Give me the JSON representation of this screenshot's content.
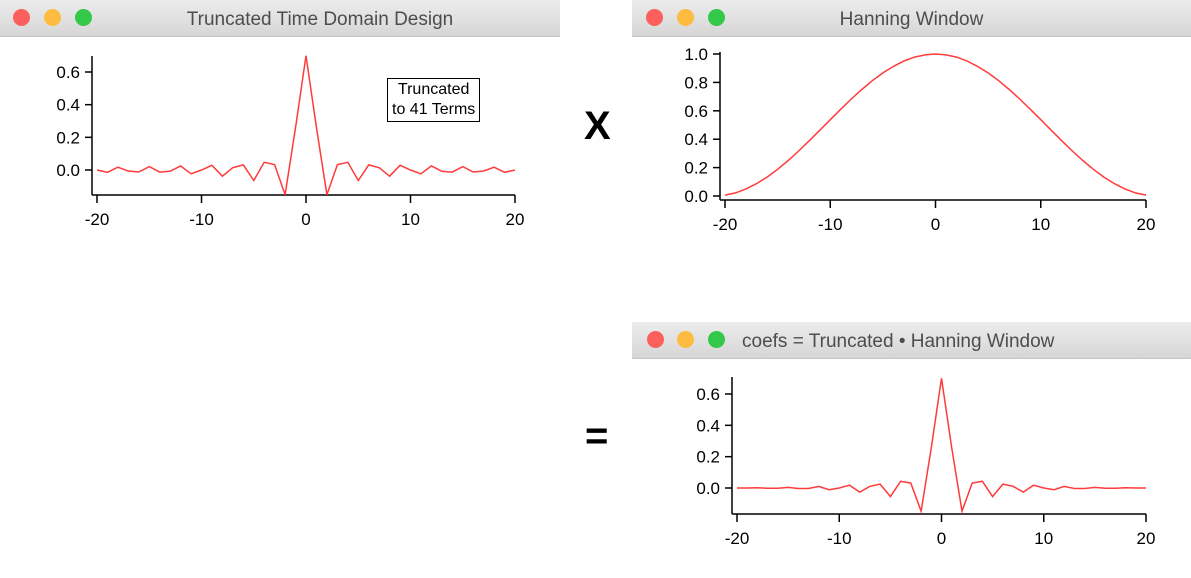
{
  "windows": [
    {
      "title": "Truncated Time Domain Design",
      "annotation": [
        "Truncated",
        "to 41 Terms"
      ]
    },
    {
      "title": "Hanning Window"
    },
    {
      "title": "coefs = Truncated • Hanning Window"
    }
  ],
  "operators": {
    "multiply": "X",
    "equals": "="
  },
  "colors": {
    "close": "#fc605c",
    "minimize": "#fdbc40",
    "zoom": "#34c84a",
    "trace": "#ff3b3b"
  },
  "chart_data": [
    {
      "type": "line",
      "xlim": [
        -20,
        20
      ],
      "ylim": [
        -0.16,
        0.7
      ],
      "xticks": [
        "-20",
        "-10",
        "0",
        "10",
        "20"
      ],
      "yticks": [
        "0.0",
        "0.2",
        "0.4",
        "0.6"
      ],
      "x": [
        -20,
        -19,
        -18,
        -17,
        -16,
        -15,
        -14,
        -13,
        -12,
        -11,
        -10,
        -9,
        -8,
        -7,
        -6,
        -5,
        -4,
        -3,
        -2,
        -1,
        0,
        1,
        2,
        3,
        4,
        5,
        6,
        7,
        8,
        9,
        10,
        11,
        12,
        13,
        14,
        15,
        16,
        17,
        18,
        19,
        20
      ],
      "y": [
        0,
        -0.014,
        0.017,
        -0.006,
        -0.012,
        0.021,
        -0.013,
        -0.008,
        0.025,
        -0.023,
        0,
        0.029,
        -0.038,
        0.014,
        0.031,
        -0.064,
        0.047,
        0.033,
        -0.151,
        0.258,
        0.7,
        0.258,
        -0.151,
        0.033,
        0.047,
        -0.064,
        0.031,
        0.014,
        -0.038,
        0.029,
        0,
        -0.023,
        0.025,
        -0.008,
        -0.013,
        0.021,
        -0.012,
        -0.006,
        0.017,
        -0.014,
        0
      ]
    },
    {
      "type": "line",
      "xlim": [
        -20,
        20
      ],
      "ylim": [
        0,
        1.0
      ],
      "xticks": [
        "-20",
        "-10",
        "0",
        "10",
        "20"
      ],
      "yticks": [
        "0.0",
        "0.2",
        "0.4",
        "0.6",
        "0.8",
        "1.0"
      ],
      "x": [
        -20,
        -19,
        -18,
        -17,
        -16,
        -15,
        -14,
        -13,
        -12,
        -11,
        -10,
        -9,
        -8,
        -7,
        -6,
        -5,
        -4,
        -3,
        -2,
        -1,
        0,
        1,
        2,
        3,
        4,
        5,
        6,
        7,
        8,
        9,
        10,
        11,
        12,
        13,
        14,
        15,
        16,
        17,
        18,
        19,
        20
      ],
      "y": [
        0.006,
        0.022,
        0.05,
        0.087,
        0.133,
        0.188,
        0.25,
        0.317,
        0.389,
        0.463,
        0.537,
        0.611,
        0.683,
        0.75,
        0.812,
        0.867,
        0.913,
        0.951,
        0.978,
        0.994,
        1,
        0.994,
        0.978,
        0.951,
        0.913,
        0.867,
        0.812,
        0.75,
        0.683,
        0.611,
        0.537,
        0.463,
        0.389,
        0.317,
        0.25,
        0.188,
        0.133,
        0.087,
        0.05,
        0.022,
        0.006
      ]
    },
    {
      "type": "line",
      "xlim": [
        -20,
        20
      ],
      "ylim": [
        -0.16,
        0.7
      ],
      "xticks": [
        "-20",
        "-10",
        "0",
        "10",
        "20"
      ],
      "yticks": [
        "0.0",
        "0.2",
        "0.4",
        "0.6"
      ],
      "x": [
        -20,
        -19,
        -18,
        -17,
        -16,
        -15,
        -14,
        -13,
        -12,
        -11,
        -10,
        -9,
        -8,
        -7,
        -6,
        -5,
        -4,
        -3,
        -2,
        -1,
        0,
        1,
        2,
        3,
        4,
        5,
        6,
        7,
        8,
        9,
        10,
        11,
        12,
        13,
        14,
        15,
        16,
        17,
        18,
        19,
        20
      ],
      "y": [
        0,
        0,
        0.001,
        -0.001,
        -0.002,
        0.004,
        -0.003,
        -0.003,
        0.01,
        -0.011,
        0,
        0.018,
        -0.026,
        0.011,
        0.025,
        -0.055,
        0.043,
        0.031,
        -0.148,
        0.257,
        0.7,
        0.257,
        -0.148,
        0.031,
        0.043,
        -0.055,
        0.025,
        0.011,
        -0.026,
        0.018,
        0,
        -0.011,
        0.01,
        -0.003,
        -0.003,
        0.004,
        -0.002,
        -0.001,
        0.001,
        0,
        0
      ]
    }
  ]
}
